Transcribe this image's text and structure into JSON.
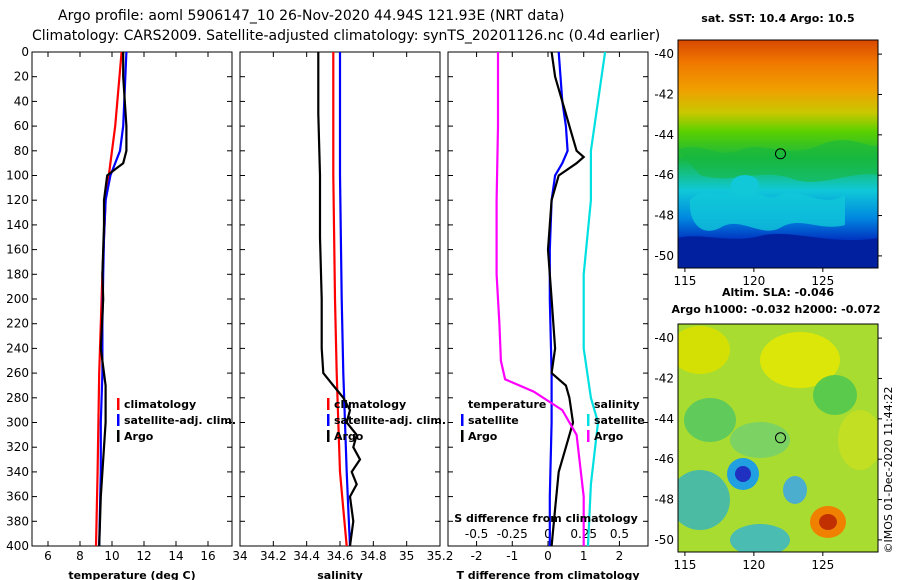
{
  "header": {
    "line1": "Argo profile: aoml 5906147_10 26-Nov-2020 44.94S 121.93E (NRT data)",
    "line2": "Climatology: CARS2009. Satellite-adjusted climatology: synTS_20201126.nc (0.4d earlier)"
  },
  "side_text": "©IMOS 01-Dec-2020 11:44:22",
  "colors": {
    "climatology": "#ff0000",
    "satellite": "#0000ff",
    "argo": "#000000",
    "sat_salinity": "#00e0e0",
    "clim_salinity": "#ff00ff"
  },
  "chart_data": [
    {
      "id": "temperature",
      "type": "line",
      "xlabel": "temperature (deg C)",
      "ylabel": "",
      "xlim": [
        5,
        17.5
      ],
      "ylim": [
        400,
        0
      ],
      "xticks": [
        "6",
        "8",
        "10",
        "12",
        "14",
        "16"
      ],
      "xtick_values": [
        6,
        8,
        10,
        12,
        14,
        16
      ],
      "yticks": [
        "0",
        "20",
        "40",
        "60",
        "80",
        "100",
        "120",
        "140",
        "160",
        "180",
        "200",
        "220",
        "240",
        "260",
        "280",
        "300",
        "320",
        "340",
        "360",
        "380",
        "400"
      ],
      "ytick_values": [
        0,
        20,
        40,
        60,
        80,
        100,
        120,
        140,
        160,
        180,
        200,
        220,
        240,
        260,
        280,
        300,
        320,
        340,
        360,
        380,
        400
      ],
      "legend": [
        "climatology",
        "satellite-adj. clim.",
        "Argo"
      ],
      "legend_position": "lower-right",
      "series": [
        {
          "name": "climatology",
          "color": "#ff0000",
          "x": [
            10.6,
            10.4,
            10.2,
            10.0,
            9.8,
            9.6,
            9.5,
            9.4,
            9.3,
            9.2,
            9.15,
            9.1,
            9.05,
            9.0
          ],
          "y": [
            0,
            30,
            60,
            80,
            100,
            120,
            150,
            180,
            220,
            260,
            300,
            340,
            370,
            400
          ]
        },
        {
          "name": "satellite-adj. clim.",
          "color": "#0000ff",
          "x": [
            10.9,
            10.8,
            10.7,
            10.5,
            9.9,
            9.6,
            9.5,
            9.45,
            9.4,
            9.4,
            9.35,
            9.3,
            9.3,
            9.25,
            9.2
          ],
          "y": [
            0,
            30,
            60,
            80,
            100,
            120,
            150,
            180,
            220,
            260,
            280,
            300,
            340,
            370,
            400
          ]
        },
        {
          "name": "Argo",
          "color": "#000000",
          "x": [
            10.7,
            10.7,
            10.8,
            10.9,
            10.9,
            10.7,
            10.2,
            9.7,
            9.5,
            9.5,
            9.4,
            9.45,
            9.3,
            9.6,
            9.6,
            9.5,
            9.4,
            9.3,
            9.25,
            9.2
          ],
          "y": [
            0,
            20,
            40,
            60,
            80,
            90,
            95,
            100,
            120,
            140,
            180,
            200,
            240,
            270,
            300,
            320,
            340,
            360,
            380,
            400
          ]
        }
      ]
    },
    {
      "id": "salinity",
      "type": "line",
      "xlabel": "salinity",
      "ylabel": "",
      "xlim": [
        34,
        35.2
      ],
      "ylim": [
        400,
        0
      ],
      "xticks": [
        "34",
        "34.2",
        "34.4",
        "34.6",
        "34.8",
        "35",
        "35.2"
      ],
      "xtick_values": [
        34,
        34.2,
        34.4,
        34.6,
        34.8,
        35,
        35.2
      ],
      "legend": [
        "climatology",
        "satellite-adj. clim.",
        "Argo"
      ],
      "legend_position": "lower-right",
      "series": [
        {
          "name": "climatology",
          "color": "#ff0000",
          "x": [
            34.56,
            34.56,
            34.57,
            34.58,
            34.59,
            34.6,
            34.62,
            34.64
          ],
          "y": [
            0,
            100,
            200,
            260,
            300,
            340,
            370,
            400
          ]
        },
        {
          "name": "satellite-adj. clim.",
          "color": "#0000ff",
          "x": [
            34.6,
            34.6,
            34.61,
            34.62,
            34.63,
            34.64,
            34.65,
            34.66
          ],
          "y": [
            0,
            100,
            200,
            260,
            300,
            340,
            370,
            400
          ]
        },
        {
          "name": "Argo",
          "color": "#000000",
          "x": [
            34.47,
            34.47,
            34.48,
            34.48,
            34.49,
            34.49,
            34.5,
            34.56,
            34.62,
            34.66,
            34.64,
            34.7,
            34.68,
            34.72,
            34.67,
            34.7,
            34.66,
            34.68,
            34.66
          ],
          "y": [
            0,
            50,
            100,
            150,
            200,
            240,
            260,
            270,
            280,
            290,
            300,
            310,
            320,
            330,
            340,
            350,
            360,
            380,
            400
          ]
        }
      ]
    },
    {
      "id": "difference",
      "type": "line",
      "xlabel": "T difference from climatology",
      "xlabel_top": "S difference from climatology",
      "ylabel": "",
      "xlim": [
        -2.8,
        2.8
      ],
      "ylim": [
        400,
        0
      ],
      "xticks": [
        "-2",
        "-1",
        "0",
        "1",
        "2"
      ],
      "xtick_values": [
        -2,
        -1,
        0,
        1,
        2
      ],
      "s_xticks": [
        "-0.5",
        "-0.25",
        "0",
        "0.25",
        "0.5"
      ],
      "s_xtick_values": [
        -0.5,
        -0.25,
        0,
        0.25,
        0.5
      ],
      "legend_left_title": "temperature",
      "legend_right_title": "salinity",
      "legend_left": [
        "satellite",
        "Argo"
      ],
      "legend_right": [
        "satellite",
        "Argo"
      ],
      "series": [
        {
          "name": "T satellite",
          "color": "#0000ff",
          "x": [
            0.3,
            0.35,
            0.4,
            0.5,
            0.55,
            0.4,
            0.2,
            0.1,
            0.05,
            0.05,
            0.1,
            0.1,
            0.05,
            0.05
          ],
          "y": [
            0,
            20,
            40,
            60,
            80,
            90,
            100,
            120,
            160,
            200,
            260,
            300,
            360,
            400
          ]
        },
        {
          "name": "T Argo",
          "color": "#000000",
          "x": [
            0.1,
            0.2,
            0.4,
            0.6,
            0.8,
            1.0,
            0.8,
            0.3,
            0.1,
            0.0,
            0.1,
            0.2,
            0.1,
            0.5,
            0.6,
            0.7,
            0.5,
            0.3,
            0.2,
            0.1
          ],
          "y": [
            0,
            20,
            40,
            60,
            80,
            85,
            90,
            100,
            120,
            160,
            200,
            240,
            260,
            270,
            280,
            300,
            320,
            340,
            370,
            400
          ]
        },
        {
          "name": "S satellite",
          "color": "#00e0e0",
          "x": [
            0.4,
            0.35,
            0.3,
            0.3,
            0.25,
            0.25,
            0.3,
            0.35,
            0.3,
            0.28
          ],
          "y": [
            0,
            40,
            80,
            120,
            180,
            240,
            280,
            300,
            350,
            400
          ]
        },
        {
          "name": "S Argo",
          "color": "#ff00ff",
          "x": [
            -0.35,
            -0.35,
            -0.36,
            -0.36,
            -0.34,
            -0.33,
            -0.3,
            -0.1,
            0.1,
            0.2,
            0.25,
            0.25
          ],
          "y": [
            0,
            60,
            120,
            180,
            220,
            250,
            265,
            275,
            290,
            310,
            360,
            400
          ]
        }
      ]
    }
  ],
  "maps": [
    {
      "id": "sst-map",
      "title": "sat. SST: 10.4 Argo: 10.5",
      "xticks": [
        "115",
        "120",
        "125"
      ],
      "yticks": [
        "-40",
        "-42",
        "-44",
        "-46",
        "-48",
        "-50"
      ],
      "lon_range": [
        114.5,
        129
      ],
      "lat_range": [
        -39.3,
        -50.6
      ],
      "marker": {
        "lon": 121.93,
        "lat": -44.94
      }
    },
    {
      "id": "sla-map",
      "title_line1": "Altim. SLA: -0.046",
      "title_line2": "Argo h1000: -0.032 h2000: -0.072",
      "xticks": [
        "115",
        "120",
        "125"
      ],
      "yticks": [
        "-40",
        "-42",
        "-44",
        "-46",
        "-48",
        "-50"
      ],
      "lon_range": [
        114.5,
        129
      ],
      "lat_range": [
        -39.3,
        -50.6
      ],
      "marker": {
        "lon": 121.93,
        "lat": -44.94
      }
    }
  ]
}
